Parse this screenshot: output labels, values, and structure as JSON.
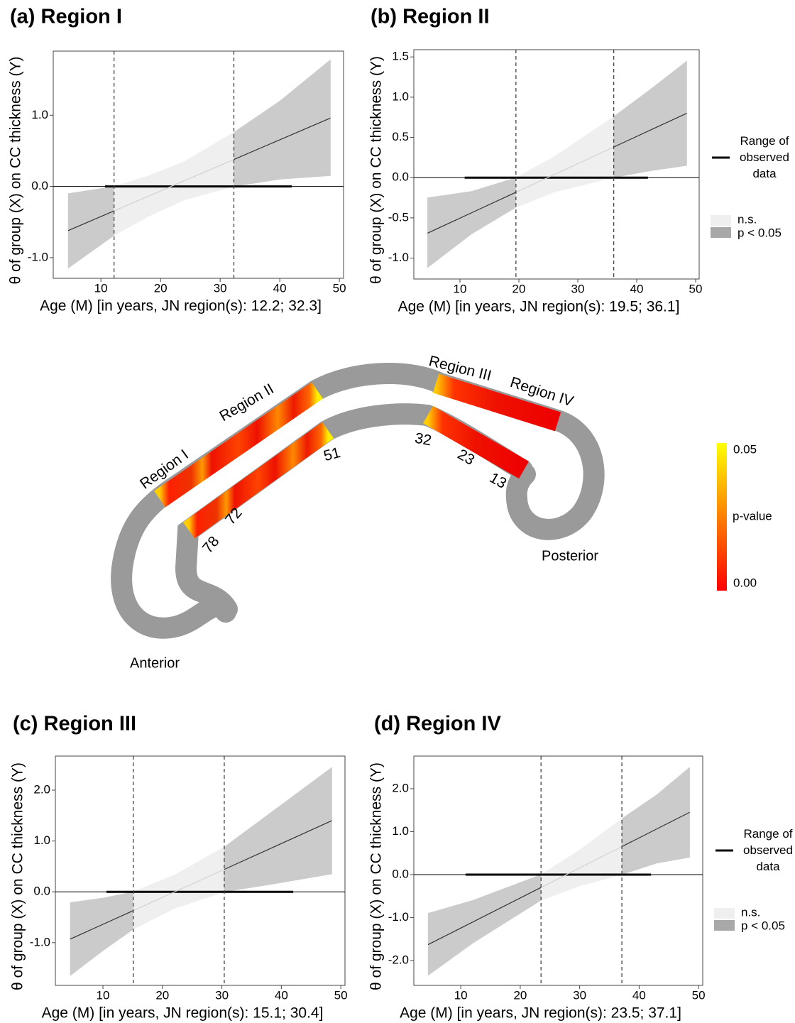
{
  "chart_data": [
    {
      "type": "jn",
      "title": "(a) Region I",
      "xlabel": "Age (M) [in years, JN region(s): 12.2; 32.3]",
      "ylabel": "θ of group (X) on CC thickness (Y)",
      "xlim": [
        2.0,
        50.7
      ],
      "ylim": [
        -1.29,
        1.9
      ],
      "xticks": [
        10,
        20,
        30,
        40,
        50
      ],
      "yticks": [
        {
          "value": -1,
          "label": "-1.0"
        },
        {
          "value": 0,
          "label": "0.0"
        },
        {
          "value": 1,
          "label": "1.0"
        }
      ],
      "jn": [
        12.2,
        32.3
      ],
      "observed_range": [
        10.7,
        42
      ],
      "x": [
        4.5,
        12.2,
        18,
        24,
        32.3,
        40,
        48.5
      ],
      "line": [
        -0.62,
        -0.344,
        -0.136,
        0.08,
        0.378,
        0.655,
        0.96
      ],
      "lower": [
        -1.15,
        -0.69,
        -0.42,
        -0.19,
        0,
        0.1,
        0.15
      ],
      "upper": [
        -0.1,
        0,
        0.15,
        0.35,
        0.76,
        1.2,
        1.78
      ],
      "colors": {
        "ns": "#efefef",
        "sig": "#cbcbcb",
        "line": "#333333",
        "line_ns": "#d2d2d2"
      }
    },
    {
      "type": "jn",
      "title": "(b) Region II",
      "xlabel": "Age (M) [in years, JN region(s): 19.5; 36.1]",
      "ylabel": "θ of group (X) on CC thickness (Y)",
      "xlim": [
        2.17,
        50.6
      ],
      "ylim": [
        -1.26,
        1.59
      ],
      "xticks": [
        10,
        20,
        30,
        40,
        50
      ],
      "yticks": [
        {
          "value": -1,
          "label": "-1.0"
        },
        -0.5,
        {
          "value": 0,
          "label": "0.0"
        },
        0.5,
        {
          "value": 1,
          "label": "1.0"
        },
        1.5
      ],
      "jn": [
        19.5,
        36.1
      ],
      "observed_range": [
        10.8,
        41.9
      ],
      "x": [
        4.5,
        12,
        19.5,
        26,
        36.1,
        42,
        48.5
      ],
      "line": [
        -0.69,
        -0.436,
        -0.182,
        0.038,
        0.38,
        0.58,
        0.8
      ],
      "lower": [
        -1.12,
        -0.7,
        -0.37,
        -0.18,
        0,
        0.08,
        0.15
      ],
      "upper": [
        -0.25,
        -0.17,
        0,
        0.26,
        0.76,
        1.08,
        1.45
      ],
      "colors": {
        "ns": "#efefef",
        "sig": "#cbcbcb",
        "line": "#333333",
        "line_ns": "#d2d2d2"
      },
      "legend": {
        "range": "Range of observed data",
        "ns": "n.s.",
        "sig": "p < 0.05"
      }
    },
    {
      "type": "jn",
      "title": "(c) Region III",
      "xlabel": "Age (M) [in years, JN region(s): 15.1; 30.4]",
      "ylabel": "θ of group (X) on CC thickness (Y)",
      "xlim": [
        2.0,
        50.7
      ],
      "ylim": [
        -1.84,
        2.67
      ],
      "xticks": [
        10,
        20,
        30,
        40,
        50
      ],
      "yticks": [
        {
          "value": -1,
          "label": "-1.0"
        },
        {
          "value": 0,
          "label": "0.0"
        },
        {
          "value": 1,
          "label": "1.0"
        },
        {
          "value": 2,
          "label": "2.0"
        }
      ],
      "jn": [
        15.1,
        30.4
      ],
      "observed_range": [
        10.6,
        42
      ],
      "x": [
        4.5,
        10,
        15.1,
        22,
        30.4,
        38,
        48.5
      ],
      "line": [
        -0.93,
        -0.639,
        -0.369,
        -0.003,
        0.441,
        0.843,
        1.4
      ],
      "lower": [
        -1.65,
        -1.16,
        -0.738,
        -0.33,
        0,
        0.14,
        0.35
      ],
      "upper": [
        -0.21,
        -0.12,
        0,
        0.33,
        0.882,
        1.54,
        2.45
      ],
      "colors": {
        "ns": "#efefef",
        "sig": "#cbcbcb",
        "line": "#333333",
        "line_ns": "#d2d2d2"
      }
    },
    {
      "type": "jn",
      "title": "(d) Region IV",
      "xlabel": "Age (M) [in years, JN region(s): 23.5; 37.1]",
      "ylabel": "θ of group (X) on CC thickness (Y)",
      "xlim": [
        2.1,
        50.7
      ],
      "ylim": [
        -2.58,
        2.76
      ],
      "xticks": [
        10,
        20,
        30,
        40,
        50
      ],
      "yticks": [
        {
          "value": -2,
          "label": "-2.0"
        },
        {
          "value": -1,
          "label": "-1.0"
        },
        {
          "value": 0,
          "label": "0.0"
        },
        {
          "value": 1,
          "label": "1.0"
        },
        {
          "value": 2,
          "label": "2.0"
        }
      ],
      "jn": [
        23.5,
        37.1
      ],
      "observed_range": [
        10.8,
        42
      ],
      "x": [
        4.5,
        12,
        23.5,
        30,
        37.1,
        43,
        48.5
      ],
      "line": [
        -1.63,
        -1.105,
        -0.3,
        0.155,
        0.652,
        1.065,
        1.45
      ],
      "lower": [
        -2.35,
        -1.6,
        -0.6,
        -0.265,
        0,
        0.265,
        0.4
      ],
      "upper": [
        -0.9,
        -0.6,
        0,
        0.575,
        1.304,
        1.865,
        2.5
      ],
      "colors": {
        "ns": "#efefef",
        "sig": "#cbcbcb",
        "line": "#333333",
        "line_ns": "#d2d2d2"
      },
      "legend": {
        "range": "Range of observed data",
        "ns": "n.s.",
        "sig": "p < 0.05"
      }
    }
  ],
  "diagram": {
    "region_labels": [
      "Region I",
      "Region II",
      "Region III",
      "Region IV"
    ],
    "point_labels": [
      "78",
      "72",
      "51",
      "32",
      "23",
      "13"
    ],
    "anterior": "Anterior",
    "posterior": "Posterior",
    "colorbar": {
      "title": "p-value",
      "ticks": [
        0.05,
        {
          "value": 0,
          "label": "0.00"
        }
      ],
      "colors": [
        "#ff0000",
        "#ffff00"
      ]
    }
  }
}
